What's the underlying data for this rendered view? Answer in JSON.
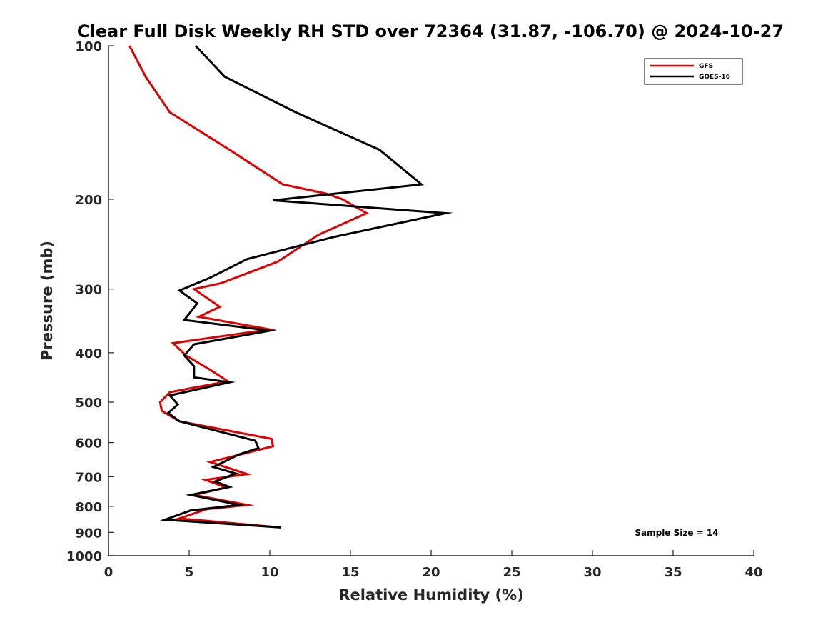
{
  "chart_data": {
    "type": "line",
    "title": "Clear Full Disk Weekly RH STD over 72364 (31.87, -106.70) @ 2024-10-27",
    "xlabel": "Relative Humidity (%)",
    "ylabel": "Pressure (mb)",
    "xlim": [
      0,
      40
    ],
    "ylim": [
      100,
      1000
    ],
    "y_reversed": true,
    "y_scale": "log",
    "x_ticks": [
      0,
      5,
      10,
      15,
      20,
      25,
      30,
      35,
      40
    ],
    "y_ticks": [
      100,
      200,
      300,
      400,
      500,
      600,
      700,
      800,
      900,
      1000
    ],
    "grid": false,
    "legend_position": "top-right",
    "annotation": "Sample Size = 14",
    "series": [
      {
        "name": "GFS",
        "color": "#e00000",
        "points": [
          [
            1.3,
            100
          ],
          [
            2.3,
            115
          ],
          [
            3.8,
            135
          ],
          [
            7.5,
            160
          ],
          [
            10.8,
            187
          ],
          [
            13.5,
            195
          ],
          [
            14.5,
            200
          ],
          [
            16.0,
            213
          ],
          [
            13.0,
            235
          ],
          [
            10.5,
            265
          ],
          [
            7.0,
            292
          ],
          [
            5.3,
            300
          ],
          [
            6.9,
            325
          ],
          [
            5.6,
            340
          ],
          [
            10.0,
            360
          ],
          [
            4.0,
            383
          ],
          [
            4.8,
            405
          ],
          [
            6.2,
            430
          ],
          [
            7.4,
            455
          ],
          [
            3.8,
            478
          ],
          [
            3.2,
            500
          ],
          [
            3.3,
            520
          ],
          [
            4.4,
            545
          ],
          [
            10.1,
            590
          ],
          [
            10.2,
            610
          ],
          [
            7.6,
            640
          ],
          [
            6.3,
            655
          ],
          [
            8.6,
            692
          ],
          [
            6.0,
            710
          ],
          [
            7.3,
            735
          ],
          [
            5.3,
            760
          ],
          [
            8.6,
            795
          ],
          [
            6.1,
            810
          ],
          [
            4.4,
            845
          ],
          [
            10.6,
            880
          ]
        ]
      },
      {
        "name": "GOES-16",
        "color": "#000000",
        "points": [
          [
            5.4,
            100
          ],
          [
            7.2,
            115
          ],
          [
            11.6,
            135
          ],
          [
            16.8,
            160
          ],
          [
            19.4,
            187
          ],
          [
            10.2,
            201
          ],
          [
            20.9,
            213
          ],
          [
            14.0,
            237
          ],
          [
            8.6,
            262
          ],
          [
            6.3,
            285
          ],
          [
            4.4,
            302
          ],
          [
            5.5,
            320
          ],
          [
            4.7,
            345
          ],
          [
            10.0,
            362
          ],
          [
            5.3,
            385
          ],
          [
            4.7,
            405
          ],
          [
            5.3,
            425
          ],
          [
            5.3,
            447
          ],
          [
            7.5,
            457
          ],
          [
            3.8,
            485
          ],
          [
            4.3,
            505
          ],
          [
            3.7,
            525
          ],
          [
            4.4,
            545
          ],
          [
            9.1,
            595
          ],
          [
            9.3,
            615
          ],
          [
            8.1,
            633
          ],
          [
            6.5,
            670
          ],
          [
            7.9,
            690
          ],
          [
            6.6,
            715
          ],
          [
            7.5,
            733
          ],
          [
            5.1,
            760
          ],
          [
            8.1,
            795
          ],
          [
            5.1,
            815
          ],
          [
            3.5,
            850
          ],
          [
            10.7,
            880
          ]
        ]
      }
    ]
  }
}
